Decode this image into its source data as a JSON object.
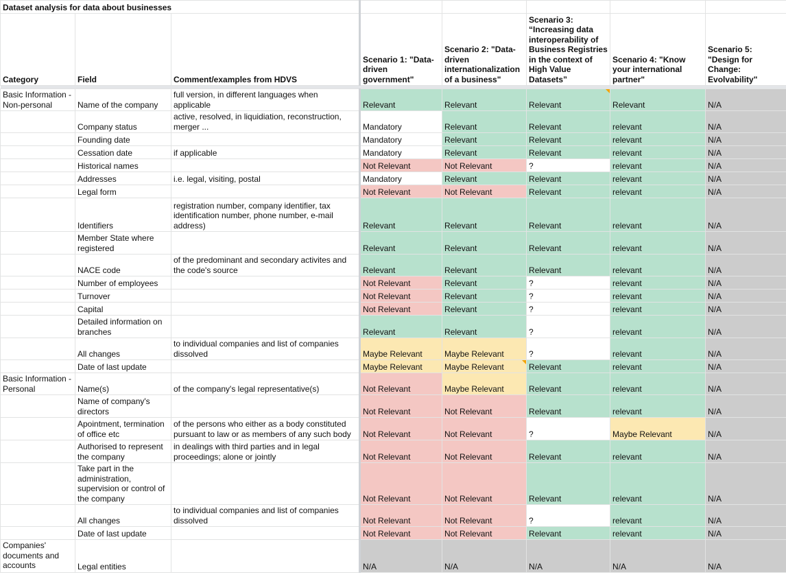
{
  "sheet": {
    "title": "Dataset analysis for data about businesses",
    "headers": {
      "category": "Category",
      "field": "Field",
      "comment": "Comment/examples from HDVS",
      "s1": "Scenario 1: \"Data-driven government\"",
      "s2": "Scenario 2: \"Data-driven internationalization of a business\"",
      "s3": "Scenario 3: “Increasing data interoperability of Business Registries in the context of High Value Datasets”",
      "s4": "Scenario 4: \"Know your international partner\"",
      "s5": "Scenario 5: \"Design for Change: Evolvability\""
    },
    "categories": {
      "np": "Basic Information - Non-personal",
      "p": "Basic Information - Personal",
      "docs": "Companies' documents and accounts"
    },
    "rows": [
      {
        "field": "Name of the company",
        "comment": "full version, in different languages when applicable",
        "s1": "Relevant",
        "s2": "Relevant",
        "s3": "Relevant",
        "s4": "Relevant",
        "s5": "N/A"
      },
      {
        "field": "Company status",
        "comment": "active, resolved, in liquidiation, reconstruction, merger ...",
        "s1": "Mandatory",
        "s2": "Relevant",
        "s3": "Relevant",
        "s4": "relevant",
        "s5": "N/A"
      },
      {
        "field": "Founding date",
        "comment": "",
        "s1": "Mandatory",
        "s2": "Relevant",
        "s3": "Relevant",
        "s4": "relevant",
        "s5": "N/A"
      },
      {
        "field": "Cessation date",
        "comment": "if applicable",
        "s1": "Mandatory",
        "s2": "Relevant",
        "s3": "Relevant",
        "s4": "relevant",
        "s5": "N/A"
      },
      {
        "field": "Historical names",
        "comment": "",
        "s1": "Not Relevant",
        "s2": "Not Relevant",
        "s3": "?",
        "s4": "relevant",
        "s5": "N/A"
      },
      {
        "field": "Addresses",
        "comment": "i.e. legal, visiting, postal",
        "s1": "Mandatory",
        "s2": "Relevant",
        "s3": "Relevant",
        "s4": "relevant",
        "s5": "N/A"
      },
      {
        "field": "Legal form",
        "comment": "",
        "s1": "Not Relevant",
        "s2": "Not Relevant",
        "s3": "Relevant",
        "s4": "relevant",
        "s5": "N/A"
      },
      {
        "field": "Identifiers",
        "comment": "registration number, company identifier, tax identification number, phone number, e-mail address)",
        "s1": "Relevant",
        "s2": "Relevant",
        "s3": "Relevant",
        "s4": "relevant",
        "s5": "N/A"
      },
      {
        "field": "Member State where registered",
        "comment": "",
        "s1": "Relevant",
        "s2": "Relevant",
        "s3": "Relevant",
        "s4": "relevant",
        "s5": "N/A"
      },
      {
        "field": "NACE code",
        "comment": "of the predominant and secondary activites and the code's source",
        "s1": "Relevant",
        "s2": "Relevant",
        "s3": "Relevant",
        "s4": "relevant",
        "s5": "N/A"
      },
      {
        "field": "Number of employees",
        "comment": "",
        "s1": "Not Relevant",
        "s2": "Relevant",
        "s3": "?",
        "s4": "relevant",
        "s5": "N/A"
      },
      {
        "field": "Turnover",
        "comment": "",
        "s1": "Not Relevant",
        "s2": "Relevant",
        "s3": "?",
        "s4": "relevant",
        "s5": "N/A"
      },
      {
        "field": "Capital",
        "comment": "",
        "s1": "Not Relevant",
        "s2": "Relevant",
        "s3": "?",
        "s4": "relevant",
        "s5": "N/A"
      },
      {
        "field": "Detailed information on branches",
        "comment": "",
        "s1": "Relevant",
        "s2": "Relevant",
        "s3": "?",
        "s4": "relevant",
        "s5": "N/A"
      },
      {
        "field": "All changes",
        "comment": "to individual companies and list of companies dissolved",
        "s1": "Maybe Relevant",
        "s2": "Maybe Relevant",
        "s3": "?",
        "s4": "relevant",
        "s5": "N/A"
      },
      {
        "field": "Date of last update",
        "comment": "",
        "s1": "Maybe Relevant",
        "s2": "Maybe Relevant",
        "s3": "Relevant",
        "s4": "relevant",
        "s5": "N/A"
      },
      {
        "field": "Name(s)",
        "comment": "of the company's legal representative(s)",
        "s1": "Not Relevant",
        "s2": "Maybe Relevant",
        "s3": "Relevant",
        "s4": "relevant",
        "s5": "N/A"
      },
      {
        "field": "Name of company's directors",
        "comment": "",
        "s1": "Not Relevant",
        "s2": "Not Relevant",
        "s3": "Relevant",
        "s4": "relevant",
        "s5": "N/A"
      },
      {
        "field": "Apointment, termination of office etc",
        "comment": "of the persons who either as a body constituted pursuant to law or as members of any such body",
        "s1": "Not Relevant",
        "s2": "Not Relevant",
        "s3": "?",
        "s4": "Maybe Relevant",
        "s5": "N/A"
      },
      {
        "field": "Authorised to represent the company",
        "comment": "in dealings with third parties and in legal proceedings; alone or jointly",
        "s1": "Not Relevant",
        "s2": "Not Relevant",
        "s3": "Relevant",
        "s4": "relevant",
        "s5": "N/A"
      },
      {
        "field": "Take part in the administration, supervision or control of the company",
        "comment": "",
        "s1": "Not Relevant",
        "s2": "Not Relevant",
        "s3": "Relevant",
        "s4": "relevant",
        "s5": "N/A"
      },
      {
        "field": "All changes",
        "comment": "to individual companies and list of companies dissolved",
        "s1": "Not Relevant",
        "s2": "Not Relevant",
        "s3": "?",
        "s4": "relevant",
        "s5": "N/A"
      },
      {
        "field": "Date of last update",
        "comment": "",
        "s1": "Not Relevant",
        "s2": "Not Relevant",
        "s3": "Relevant",
        "s4": "relevant",
        "s5": "N/A"
      },
      {
        "field": "Legal entities",
        "comment": "",
        "s1": "N/A",
        "s2": "N/A",
        "s3": "N/A",
        "s4": "N/A",
        "s5": "N/A"
      }
    ],
    "colors": {
      "relevant": "#b7e1cd",
      "not_relevant": "#f4c7c3",
      "maybe_relevant": "#fce8b2",
      "na": "#cccccc"
    }
  }
}
